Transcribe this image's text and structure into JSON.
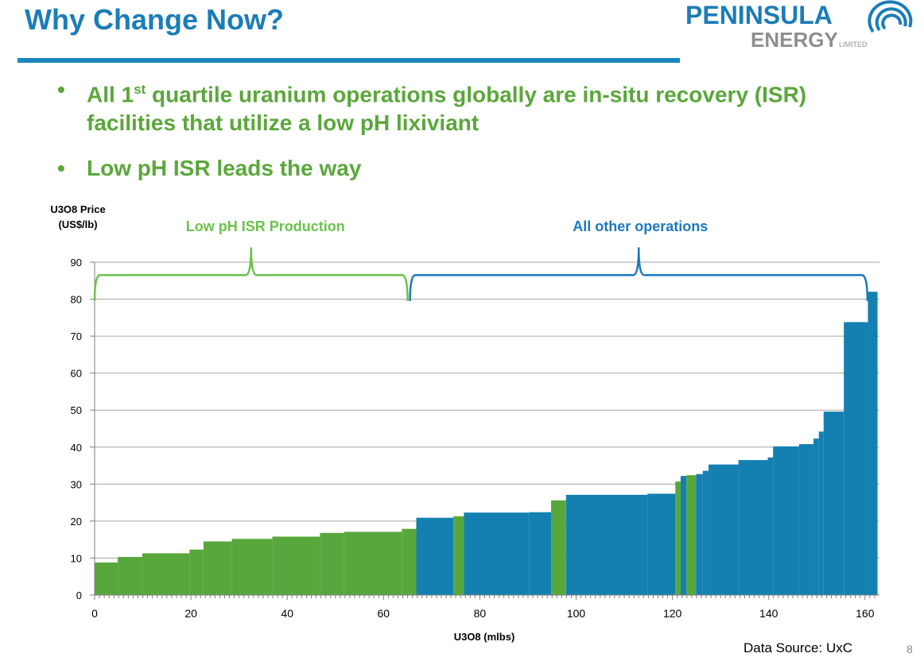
{
  "slide": {
    "title": "Why Change Now?",
    "bullets": [
      {
        "text_pre": "All 1",
        "sup": "st",
        "text_post": " quartile uranium operations globally are in-situ recovery (ISR) facilities that utilize a low pH lixiviant"
      },
      {
        "text": "Low pH ISR leads the way"
      }
    ],
    "source": "Data Source: UxC",
    "page_number": "8",
    "colors": {
      "title": "#1b7db8",
      "bullet": "#5aa73b",
      "rule": "#1b86bf"
    }
  },
  "logo": {
    "word1": "PENINSULA",
    "word2": "ENERGY",
    "suffix": "LIMITED",
    "icon": "swirl-rings-icon"
  },
  "chart_data": {
    "type": "bar",
    "subtype": "cost-curve",
    "ylabel_line1": "U3O8 Price",
    "ylabel_line2": "(US$/lb)",
    "xlabel": "U3O8 (mlbs)",
    "xlim": [
      0,
      163
    ],
    "ylim": [
      0,
      90
    ],
    "xticks": [
      0,
      20,
      40,
      60,
      80,
      100,
      120,
      140,
      160
    ],
    "yticks": [
      0,
      10,
      20,
      30,
      40,
      50,
      60,
      70,
      80,
      90
    ],
    "grid": true,
    "colors": {
      "low_ph_isr": "#58a73c",
      "other": "#1380b1"
    },
    "brackets": [
      {
        "label": "Low pH ISR Production",
        "x_start": 0,
        "x_end": 65,
        "color": "#6ac24b"
      },
      {
        "label": "All other operations",
        "x_start": 65.5,
        "x_end": 160.5,
        "color": "#1c79bf"
      }
    ],
    "segments": [
      {
        "x0": 0.0,
        "x1": 4.8,
        "y": 8.8,
        "group": "low_ph_isr"
      },
      {
        "x0": 4.8,
        "x1": 9.9,
        "y": 10.3,
        "group": "low_ph_isr"
      },
      {
        "x0": 9.9,
        "x1": 19.7,
        "y": 11.3,
        "group": "low_ph_isr"
      },
      {
        "x0": 19.7,
        "x1": 22.6,
        "y": 12.3,
        "group": "low_ph_isr"
      },
      {
        "x0": 22.6,
        "x1": 28.5,
        "y": 14.5,
        "group": "low_ph_isr"
      },
      {
        "x0": 28.5,
        "x1": 36.9,
        "y": 15.2,
        "group": "low_ph_isr"
      },
      {
        "x0": 36.9,
        "x1": 46.8,
        "y": 15.8,
        "group": "low_ph_isr"
      },
      {
        "x0": 46.8,
        "x1": 51.8,
        "y": 16.8,
        "group": "low_ph_isr"
      },
      {
        "x0": 51.8,
        "x1": 63.8,
        "y": 17.1,
        "group": "low_ph_isr"
      },
      {
        "x0": 63.8,
        "x1": 66.8,
        "y": 17.9,
        "group": "low_ph_isr"
      },
      {
        "x0": 66.8,
        "x1": 74.5,
        "y": 20.9,
        "group": "other"
      },
      {
        "x0": 74.5,
        "x1": 76.7,
        "y": 21.3,
        "group": "low_ph_isr"
      },
      {
        "x0": 76.7,
        "x1": 90.3,
        "y": 22.3,
        "group": "other"
      },
      {
        "x0": 90.3,
        "x1": 94.8,
        "y": 22.4,
        "group": "other"
      },
      {
        "x0": 94.8,
        "x1": 97.9,
        "y": 25.6,
        "group": "low_ph_isr"
      },
      {
        "x0": 97.9,
        "x1": 114.8,
        "y": 27.1,
        "group": "other"
      },
      {
        "x0": 114.8,
        "x1": 120.6,
        "y": 27.4,
        "group": "other"
      },
      {
        "x0": 120.6,
        "x1": 121.7,
        "y": 30.7,
        "group": "low_ph_isr"
      },
      {
        "x0": 121.7,
        "x1": 122.9,
        "y": 32.2,
        "group": "other"
      },
      {
        "x0": 122.9,
        "x1": 124.9,
        "y": 32.4,
        "group": "low_ph_isr"
      },
      {
        "x0": 124.9,
        "x1": 126.3,
        "y": 32.7,
        "group": "other"
      },
      {
        "x0": 126.3,
        "x1": 127.5,
        "y": 33.6,
        "group": "other"
      },
      {
        "x0": 127.5,
        "x1": 133.7,
        "y": 35.3,
        "group": "other"
      },
      {
        "x0": 133.7,
        "x1": 139.8,
        "y": 36.5,
        "group": "other"
      },
      {
        "x0": 139.8,
        "x1": 140.9,
        "y": 37.2,
        "group": "other"
      },
      {
        "x0": 140.9,
        "x1": 146.3,
        "y": 40.2,
        "group": "other"
      },
      {
        "x0": 146.3,
        "x1": 149.3,
        "y": 40.8,
        "group": "other"
      },
      {
        "x0": 149.3,
        "x1": 150.4,
        "y": 42.3,
        "group": "other"
      },
      {
        "x0": 150.4,
        "x1": 151.4,
        "y": 44.2,
        "group": "other"
      },
      {
        "x0": 151.4,
        "x1": 155.6,
        "y": 49.6,
        "group": "other"
      },
      {
        "x0": 155.6,
        "x1": 160.6,
        "y": 73.8,
        "group": "other"
      },
      {
        "x0": 160.6,
        "x1": 162.6,
        "y": 82.0,
        "group": "other"
      }
    ]
  }
}
